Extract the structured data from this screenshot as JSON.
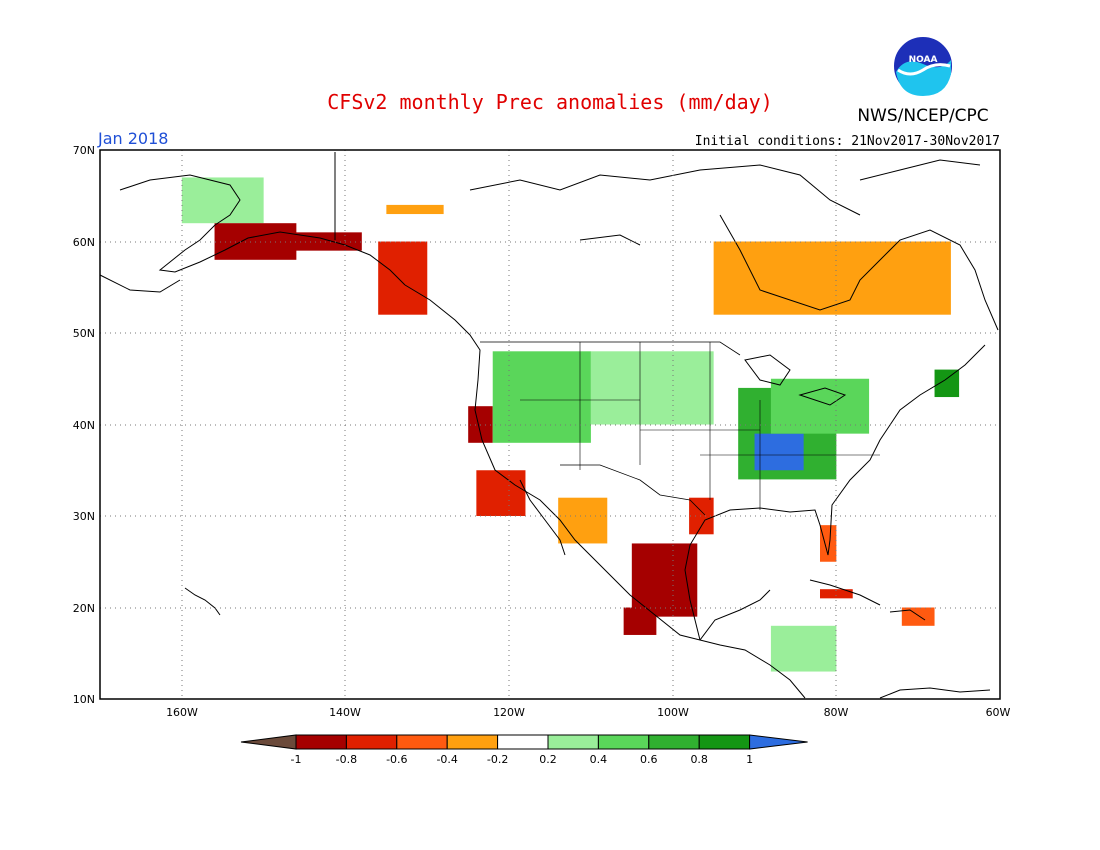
{
  "header": {
    "title": "CFSv2 monthly Prec anomalies (mm/day)",
    "valid_month": "Jan 2018",
    "initial_conditions": "Initial conditions: 21Nov2017-30Nov2017",
    "organization": "NWS/NCEP/CPC",
    "logo_text": "NOAA"
  },
  "map": {
    "lon_labels": [
      "160W",
      "140W",
      "120W",
      "100W",
      "80W",
      "60W"
    ],
    "lat_labels": [
      "70N",
      "60N",
      "50N",
      "40N",
      "30N",
      "20N",
      "10N"
    ],
    "lon_range": [
      -170,
      -60
    ],
    "lat_range": [
      10,
      70
    ],
    "grid": "dotted"
  },
  "legend": {
    "labels": [
      "-1",
      "-0.8",
      "-0.6",
      "-0.4",
      "-0.2",
      "0.2",
      "0.4",
      "0.6",
      "0.8",
      "1"
    ],
    "colors": [
      "#6b4a3a",
      "#a50000",
      "#e02000",
      "#ff5a10",
      "#ffa010",
      "#ffffff",
      "#9aee9a",
      "#5ad65a",
      "#30b030",
      "#149614",
      "#2d6de0"
    ]
  },
  "chart_data": {
    "type": "heatmap",
    "title": "CFSv2 monthly Prec anomalies (mm/day)",
    "units": "mm/day",
    "regions": [
      {
        "lon": [
          -160,
          -150
        ],
        "lat": [
          62,
          67
        ],
        "value": 0.3
      },
      {
        "lon": [
          -156,
          -146
        ],
        "lat": [
          58,
          62
        ],
        "value": -0.9
      },
      {
        "lon": [
          -148,
          -138
        ],
        "lat": [
          59,
          61
        ],
        "value": -1.0
      },
      {
        "lon": [
          -136,
          -130
        ],
        "lat": [
          52,
          60
        ],
        "value": -0.8
      },
      {
        "lon": [
          -135,
          -128
        ],
        "lat": [
          63,
          64
        ],
        "value": -0.3
      },
      {
        "lon": [
          -125,
          -122
        ],
        "lat": [
          38,
          42
        ],
        "value": -1.0
      },
      {
        "lon": [
          -124,
          -118
        ],
        "lat": [
          30,
          35
        ],
        "value": -0.8
      },
      {
        "lon": [
          -114,
          -108
        ],
        "lat": [
          27,
          32
        ],
        "value": -0.4
      },
      {
        "lon": [
          -105,
          -97
        ],
        "lat": [
          19,
          27
        ],
        "value": -0.9
      },
      {
        "lon": [
          -106,
          -102
        ],
        "lat": [
          17,
          20
        ],
        "value": -1.0
      },
      {
        "lon": [
          -98,
          -95
        ],
        "lat": [
          28,
          32
        ],
        "value": -0.7
      },
      {
        "lon": [
          -122,
          -110
        ],
        "lat": [
          38,
          48
        ],
        "value": 0.4
      },
      {
        "lon": [
          -110,
          -95
        ],
        "lat": [
          40,
          48
        ],
        "value": 0.3
      },
      {
        "lon": [
          -92,
          -80
        ],
        "lat": [
          34,
          44
        ],
        "value": 0.6
      },
      {
        "lon": [
          -90,
          -84
        ],
        "lat": [
          35,
          39
        ],
        "value": 1.0
      },
      {
        "lon": [
          -88,
          -76
        ],
        "lat": [
          39,
          45
        ],
        "value": 0.5
      },
      {
        "lon": [
          -68,
          -65
        ],
        "lat": [
          43,
          46
        ],
        "value": 0.8
      },
      {
        "lon": [
          -82,
          -80
        ],
        "lat": [
          25,
          29
        ],
        "value": -0.6
      },
      {
        "lon": [
          -88,
          -80
        ],
        "lat": [
          13,
          18
        ],
        "value": 0.3
      },
      {
        "lon": [
          -72,
          -68
        ],
        "lat": [
          18,
          20
        ],
        "value": -0.6
      },
      {
        "lon": [
          -82,
          -78
        ],
        "lat": [
          21,
          22
        ],
        "value": -0.8
      },
      {
        "lon": [
          -95,
          -66
        ],
        "lat": [
          52,
          60
        ],
        "value": -0.3
      }
    ]
  }
}
